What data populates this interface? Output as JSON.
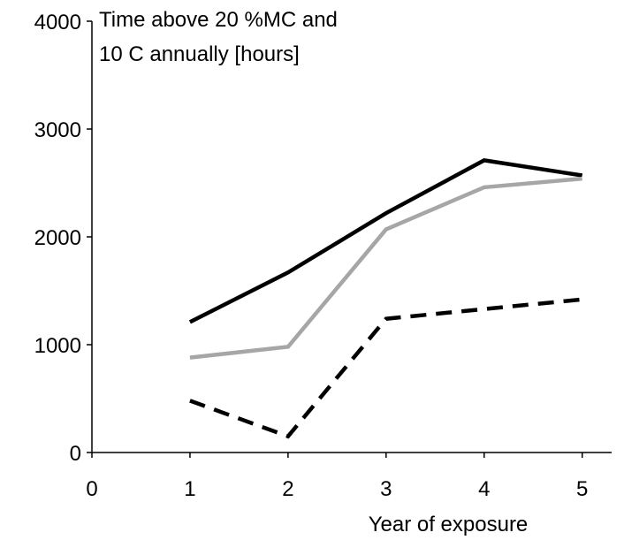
{
  "chart_data": {
    "type": "line",
    "title_lines": [
      "Time above 20 %MC and",
      "10   C annually [hours]"
    ],
    "xlabel": "Year of exposure",
    "ylabel": "",
    "xlim": [
      0,
      5.3
    ],
    "ylim": [
      0,
      4000
    ],
    "x_ticks": [
      0,
      1,
      2,
      3,
      4,
      5
    ],
    "y_ticks": [
      0,
      1000,
      2000,
      3000,
      4000
    ],
    "grid": false,
    "x": [
      1,
      2,
      3,
      4,
      5
    ],
    "series": [
      {
        "values": [
          1210,
          1670,
          2220,
          2710,
          2570
        ],
        "color": "#000000",
        "dash": "solid"
      },
      {
        "values": [
          880,
          980,
          2070,
          2460,
          2540
        ],
        "color": "#a6a6a6",
        "dash": "solid"
      },
      {
        "values": [
          480,
          150,
          1240,
          1330,
          1420
        ],
        "color": "#000000",
        "dash": "dashed"
      }
    ]
  }
}
